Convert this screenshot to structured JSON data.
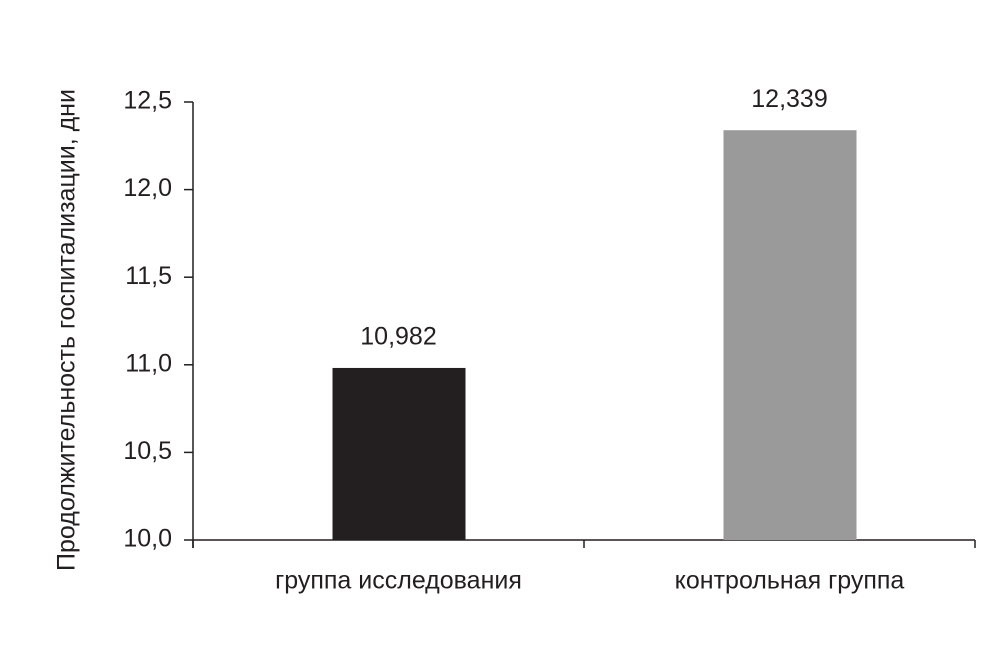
{
  "chart_data": {
    "type": "bar",
    "y_label": "Продолжительность госпитализации, дни",
    "categories": [
      "группа исследования",
      "контрольная группа"
    ],
    "values": [
      10.982,
      12.339
    ],
    "value_labels": [
      "10,982",
      "12,339"
    ],
    "colors": [
      "#231f20",
      "#9b9a9b"
    ],
    "ylim": [
      10,
      12.5
    ],
    "yticks": [
      {
        "value": 10,
        "label": "10,0"
      },
      {
        "value": 10.5,
        "label": "10,5"
      },
      {
        "value": 11,
        "label": "11,0"
      },
      {
        "value": 11.5,
        "label": "11,5"
      },
      {
        "value": 12,
        "label": "12,0"
      },
      {
        "value": 12.5,
        "label": "12,5"
      }
    ]
  }
}
